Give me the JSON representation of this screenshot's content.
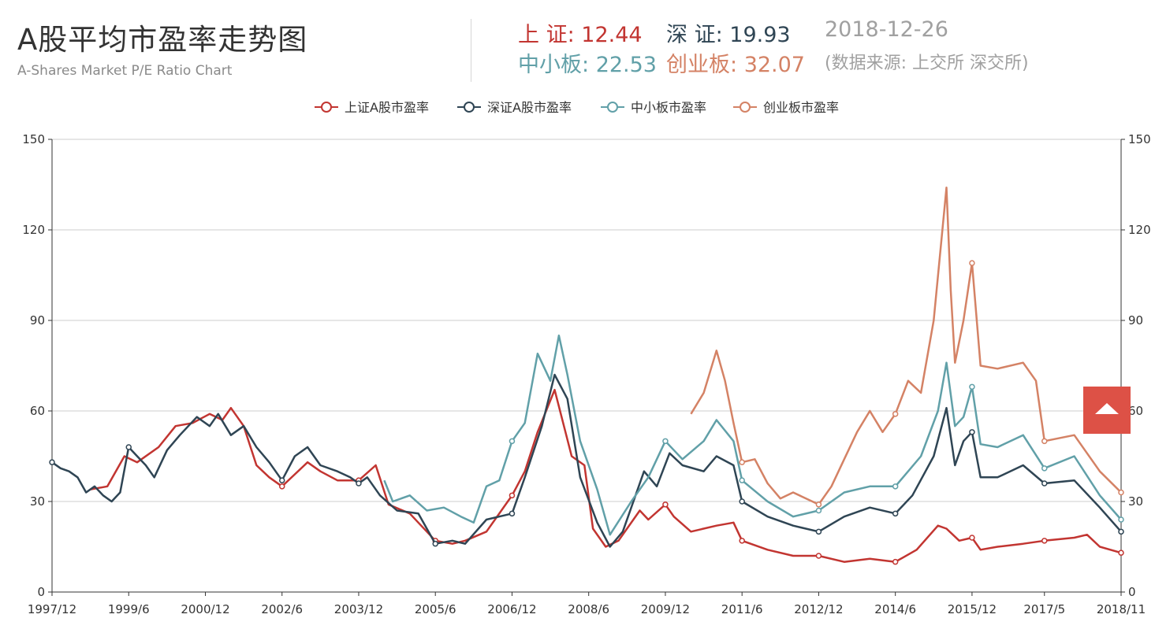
{
  "header": {
    "title": "A股平均市盈率走势图",
    "subtitle": "A-Shares Market P/E Ratio Chart"
  },
  "stats": {
    "shanghai": {
      "label": "上 证: ",
      "value": "12.44"
    },
    "shenzhen": {
      "label": "深 证: ",
      "value": "19.93"
    },
    "date": "2018-12-26",
    "sme": {
      "label": "中小板: ",
      "value": "22.53"
    },
    "chinext": {
      "label": "创业板: ",
      "value": "32.07"
    },
    "source": "(数据来源: 上交所 深交所)"
  },
  "colors": {
    "shanghai": "#c23531",
    "shenzhen": "#2f4554",
    "sme": "#61a0a8",
    "chinext": "#d48265",
    "scroll_button": "#dd5146"
  },
  "icons": {
    "scroll_top": "triangle-up-icon"
  },
  "chart_data": {
    "type": "line",
    "xlabel": "",
    "ylabel": "",
    "ylim": [
      0,
      150
    ],
    "yticks": [
      0,
      30,
      60,
      90,
      120,
      150
    ],
    "xlim": [
      "1997-12",
      "2018-11"
    ],
    "x_tick_labels": [
      "1997/12",
      "1999/6",
      "2000/12",
      "2002/6",
      "2003/12",
      "2005/6",
      "2006/12",
      "2008/6",
      "2009/12",
      "2011/6",
      "2012/12",
      "2014/6",
      "2015/12",
      "2017/5",
      "2018/11"
    ],
    "grid": true,
    "legend": "top-center",
    "series": [
      {
        "name": "上证A股市盈率",
        "color": "#c23531",
        "points": [
          [
            "1998-09",
            34
          ],
          [
            "1999-01",
            35
          ],
          [
            "1999-05",
            45
          ],
          [
            "1999-08",
            43
          ],
          [
            "2000-01",
            48
          ],
          [
            "2000-05",
            55
          ],
          [
            "2000-09",
            56
          ],
          [
            "2001-01",
            59
          ],
          [
            "2001-04",
            57
          ],
          [
            "2001-06",
            61
          ],
          [
            "2001-09",
            55
          ],
          [
            "2001-12",
            42
          ],
          [
            "2002-03",
            38
          ],
          [
            "2002-06",
            35
          ],
          [
            "2002-09",
            39
          ],
          [
            "2002-12",
            43
          ],
          [
            "2003-03",
            40
          ],
          [
            "2003-07",
            37
          ],
          [
            "2003-12",
            37
          ],
          [
            "2004-04",
            42
          ],
          [
            "2004-07",
            29
          ],
          [
            "2004-12",
            26
          ],
          [
            "2005-06",
            17
          ],
          [
            "2005-10",
            16
          ],
          [
            "2006-01",
            17
          ],
          [
            "2006-06",
            20
          ],
          [
            "2006-12",
            32
          ],
          [
            "2007-03",
            40
          ],
          [
            "2007-06",
            53
          ],
          [
            "2007-10",
            67
          ],
          [
            "2007-12",
            56
          ],
          [
            "2008-02",
            45
          ],
          [
            "2008-05",
            42
          ],
          [
            "2008-07",
            21
          ],
          [
            "2008-10",
            15
          ],
          [
            "2009-01",
            17
          ],
          [
            "2009-06",
            27
          ],
          [
            "2009-08",
            24
          ],
          [
            "2009-12",
            29
          ],
          [
            "2010-02",
            25
          ],
          [
            "2010-06",
            20
          ],
          [
            "2010-12",
            22
          ],
          [
            "2011-04",
            23
          ],
          [
            "2011-06",
            17
          ],
          [
            "2011-12",
            14
          ],
          [
            "2012-06",
            12
          ],
          [
            "2012-12",
            12
          ],
          [
            "2013-06",
            10
          ],
          [
            "2013-12",
            11
          ],
          [
            "2014-06",
            10
          ],
          [
            "2014-11",
            14
          ],
          [
            "2015-04",
            22
          ],
          [
            "2015-06",
            21
          ],
          [
            "2015-09",
            17
          ],
          [
            "2015-12",
            18
          ],
          [
            "2016-02",
            14
          ],
          [
            "2016-06",
            15
          ],
          [
            "2016-12",
            16
          ],
          [
            "2017-05",
            17
          ],
          [
            "2017-12",
            18
          ],
          [
            "2018-03",
            19
          ],
          [
            "2018-06",
            15
          ],
          [
            "2018-11",
            13
          ]
        ]
      },
      {
        "name": "深证A股市盈率",
        "color": "#2f4554",
        "points": [
          [
            "1997-12",
            43
          ],
          [
            "1998-02",
            41
          ],
          [
            "1998-04",
            40
          ],
          [
            "1998-06",
            38
          ],
          [
            "1998-08",
            33
          ],
          [
            "1998-10",
            35
          ],
          [
            "1998-12",
            32
          ],
          [
            "1999-02",
            30
          ],
          [
            "1999-04",
            33
          ],
          [
            "1999-06",
            48
          ],
          [
            "1999-08",
            45
          ],
          [
            "1999-10",
            42
          ],
          [
            "1999-12",
            38
          ],
          [
            "2000-03",
            47
          ],
          [
            "2000-06",
            52
          ],
          [
            "2000-10",
            58
          ],
          [
            "2001-01",
            55
          ],
          [
            "2001-03",
            59
          ],
          [
            "2001-06",
            52
          ],
          [
            "2001-09",
            55
          ],
          [
            "2001-12",
            48
          ],
          [
            "2002-03",
            43
          ],
          [
            "2002-06",
            37
          ],
          [
            "2002-09",
            45
          ],
          [
            "2002-12",
            48
          ],
          [
            "2003-03",
            42
          ],
          [
            "2003-07",
            40
          ],
          [
            "2003-10",
            38
          ],
          [
            "2003-12",
            36
          ],
          [
            "2004-02",
            38
          ],
          [
            "2004-05",
            32
          ],
          [
            "2004-09",
            27
          ],
          [
            "2005-02",
            26
          ],
          [
            "2005-06",
            16
          ],
          [
            "2005-10",
            17
          ],
          [
            "2006-01",
            16
          ],
          [
            "2006-06",
            24
          ],
          [
            "2006-12",
            26
          ],
          [
            "2007-03",
            38
          ],
          [
            "2007-07",
            55
          ],
          [
            "2007-10",
            72
          ],
          [
            "2008-01",
            64
          ],
          [
            "2008-04",
            38
          ],
          [
            "2008-08",
            23
          ],
          [
            "2008-11",
            15
          ],
          [
            "2009-02",
            20
          ],
          [
            "2009-07",
            40
          ],
          [
            "2009-10",
            35
          ],
          [
            "2010-01",
            46
          ],
          [
            "2010-04",
            42
          ],
          [
            "2010-09",
            40
          ],
          [
            "2010-12",
            45
          ],
          [
            "2011-04",
            42
          ],
          [
            "2011-06",
            30
          ],
          [
            "2011-12",
            25
          ],
          [
            "2012-06",
            22
          ],
          [
            "2012-12",
            20
          ],
          [
            "2013-06",
            25
          ],
          [
            "2013-12",
            28
          ],
          [
            "2014-06",
            26
          ],
          [
            "2014-10",
            32
          ],
          [
            "2015-03",
            45
          ],
          [
            "2015-06",
            61
          ],
          [
            "2015-08",
            42
          ],
          [
            "2015-10",
            50
          ],
          [
            "2015-12",
            53
          ],
          [
            "2016-02",
            38
          ],
          [
            "2016-06",
            38
          ],
          [
            "2016-12",
            42
          ],
          [
            "2017-05",
            36
          ],
          [
            "2017-12",
            37
          ],
          [
            "2018-06",
            28
          ],
          [
            "2018-11",
            20
          ]
        ]
      },
      {
        "name": "中小板市盈率",
        "color": "#61a0a8",
        "points": [
          [
            "2004-06",
            37
          ],
          [
            "2004-08",
            30
          ],
          [
            "2004-12",
            32
          ],
          [
            "2005-04",
            27
          ],
          [
            "2005-08",
            28
          ],
          [
            "2005-12",
            25
          ],
          [
            "2006-03",
            23
          ],
          [
            "2006-06",
            35
          ],
          [
            "2006-09",
            37
          ],
          [
            "2006-12",
            50
          ],
          [
            "2007-03",
            56
          ],
          [
            "2007-06",
            79
          ],
          [
            "2007-09",
            70
          ],
          [
            "2007-11",
            85
          ],
          [
            "2008-01",
            72
          ],
          [
            "2008-04",
            50
          ],
          [
            "2008-08",
            34
          ],
          [
            "2008-11",
            19
          ],
          [
            "2009-04",
            30
          ],
          [
            "2009-08",
            38
          ],
          [
            "2009-12",
            50
          ],
          [
            "2010-04",
            44
          ],
          [
            "2010-09",
            50
          ],
          [
            "2010-12",
            57
          ],
          [
            "2011-04",
            50
          ],
          [
            "2011-06",
            37
          ],
          [
            "2011-12",
            30
          ],
          [
            "2012-06",
            25
          ],
          [
            "2012-12",
            27
          ],
          [
            "2013-06",
            33
          ],
          [
            "2013-12",
            35
          ],
          [
            "2014-06",
            35
          ],
          [
            "2014-12",
            45
          ],
          [
            "2015-04",
            60
          ],
          [
            "2015-06",
            76
          ],
          [
            "2015-08",
            55
          ],
          [
            "2015-10",
            58
          ],
          [
            "2015-12",
            68
          ],
          [
            "2016-02",
            49
          ],
          [
            "2016-06",
            48
          ],
          [
            "2016-12",
            52
          ],
          [
            "2017-05",
            41
          ],
          [
            "2017-12",
            45
          ],
          [
            "2018-06",
            32
          ],
          [
            "2018-11",
            24
          ]
        ]
      },
      {
        "name": "创业板市盈率",
        "color": "#d48265",
        "points": [
          [
            "2010-06",
            59
          ],
          [
            "2010-09",
            66
          ],
          [
            "2010-12",
            80
          ],
          [
            "2011-02",
            70
          ],
          [
            "2011-04",
            56
          ],
          [
            "2011-06",
            43
          ],
          [
            "2011-09",
            44
          ],
          [
            "2011-12",
            36
          ],
          [
            "2012-03",
            31
          ],
          [
            "2012-06",
            33
          ],
          [
            "2012-12",
            29
          ],
          [
            "2013-03",
            35
          ],
          [
            "2013-06",
            44
          ],
          [
            "2013-09",
            53
          ],
          [
            "2013-12",
            60
          ],
          [
            "2014-03",
            53
          ],
          [
            "2014-06",
            59
          ],
          [
            "2014-09",
            70
          ],
          [
            "2014-12",
            66
          ],
          [
            "2015-03",
            90
          ],
          [
            "2015-06",
            134
          ],
          [
            "2015-07",
            100
          ],
          [
            "2015-08",
            76
          ],
          [
            "2015-10",
            90
          ],
          [
            "2015-12",
            109
          ],
          [
            "2016-02",
            75
          ],
          [
            "2016-06",
            74
          ],
          [
            "2016-12",
            76
          ],
          [
            "2017-03",
            70
          ],
          [
            "2017-05",
            50
          ],
          [
            "2017-12",
            52
          ],
          [
            "2018-06",
            40
          ],
          [
            "2018-11",
            33
          ]
        ]
      }
    ]
  }
}
